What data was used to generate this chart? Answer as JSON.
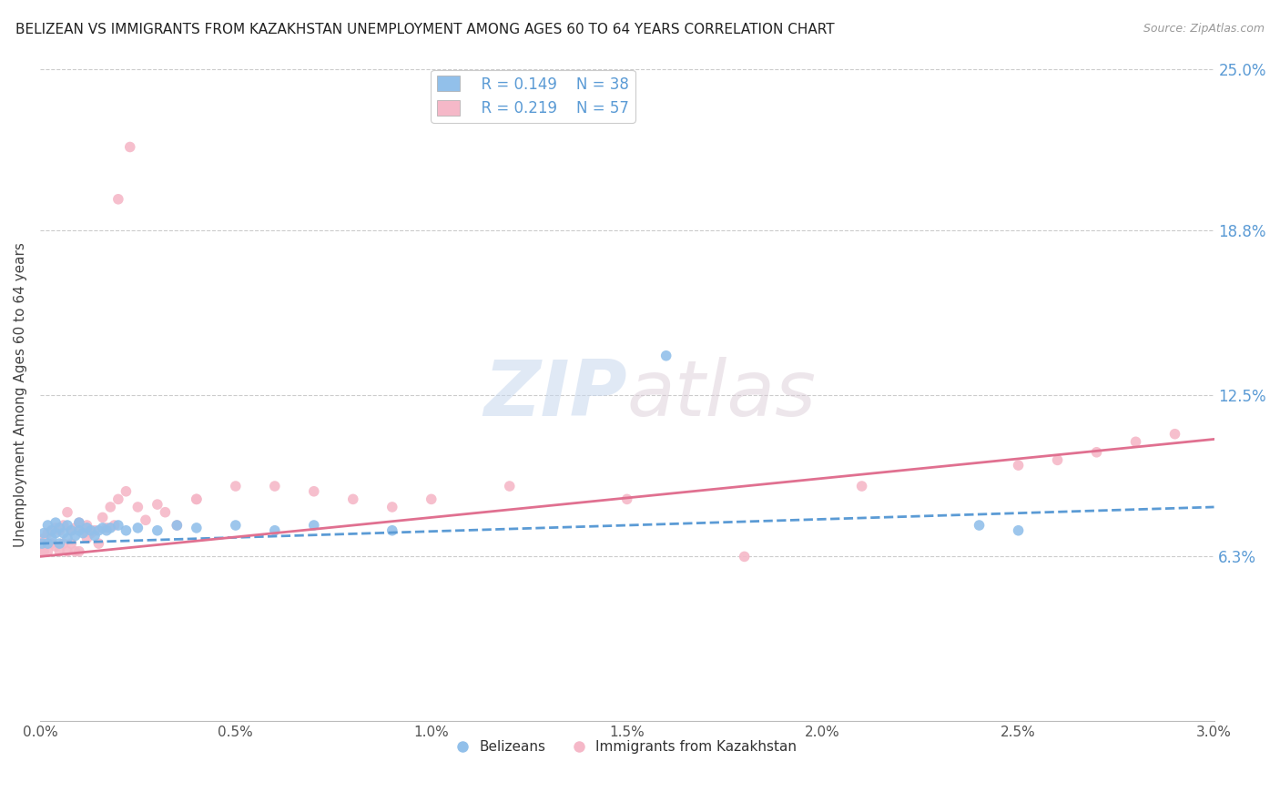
{
  "title": "BELIZEAN VS IMMIGRANTS FROM KAZAKHSTAN UNEMPLOYMENT AMONG AGES 60 TO 64 YEARS CORRELATION CHART",
  "source": "Source: ZipAtlas.com",
  "ylabel": "Unemployment Among Ages 60 to 64 years",
  "xlim": [
    0.0,
    0.03
  ],
  "ylim": [
    0.0,
    0.25
  ],
  "xtick_labels": [
    "0.0%",
    "0.5%",
    "1.0%",
    "1.5%",
    "2.0%",
    "2.5%",
    "3.0%"
  ],
  "xtick_vals": [
    0.0,
    0.005,
    0.01,
    0.015,
    0.02,
    0.025,
    0.03
  ],
  "ytick_labels": [
    "6.3%",
    "12.5%",
    "18.8%",
    "25.0%"
  ],
  "ytick_vals": [
    0.063,
    0.125,
    0.188,
    0.25
  ],
  "grid_color": "#cccccc",
  "background_color": "#ffffff",
  "blue_color": "#92c0ea",
  "pink_color": "#f5b8c8",
  "blue_line_color": "#5b9bd5",
  "pink_line_color": "#e07090",
  "legend_R_blue": "R = 0.149",
  "legend_N_blue": "N = 38",
  "legend_R_pink": "R = 0.219",
  "legend_N_pink": "N = 57",
  "watermark_zip": "ZIP",
  "watermark_atlas": "atlas",
  "blue_scatter_x": [
    5e-05,
    0.0001,
    0.0002,
    0.0002,
    0.0003,
    0.0003,
    0.0004,
    0.0004,
    0.0005,
    0.0005,
    0.0006,
    0.0007,
    0.0007,
    0.0008,
    0.0009,
    0.001,
    0.001,
    0.0011,
    0.0012,
    0.0013,
    0.0014,
    0.0015,
    0.0016,
    0.0017,
    0.0018,
    0.002,
    0.0022,
    0.0025,
    0.003,
    0.0035,
    0.004,
    0.005,
    0.006,
    0.007,
    0.009,
    0.016,
    0.024,
    0.025
  ],
  "blue_scatter_y": [
    0.068,
    0.072,
    0.068,
    0.075,
    0.07,
    0.073,
    0.072,
    0.076,
    0.068,
    0.074,
    0.072,
    0.07,
    0.075,
    0.073,
    0.071,
    0.073,
    0.076,
    0.072,
    0.074,
    0.073,
    0.071,
    0.073,
    0.074,
    0.073,
    0.074,
    0.075,
    0.073,
    0.074,
    0.073,
    0.075,
    0.074,
    0.075,
    0.073,
    0.075,
    0.073,
    0.14,
    0.075,
    0.073
  ],
  "pink_scatter_x": [
    5e-05,
    0.0001,
    0.0001,
    0.0002,
    0.0002,
    0.0003,
    0.0003,
    0.0004,
    0.0004,
    0.0005,
    0.0005,
    0.0006,
    0.0006,
    0.0007,
    0.0007,
    0.0008,
    0.0008,
    0.0009,
    0.0009,
    0.001,
    0.001,
    0.0011,
    0.0012,
    0.0012,
    0.0013,
    0.0014,
    0.0015,
    0.0016,
    0.0017,
    0.0018,
    0.0019,
    0.002,
    0.002,
    0.0022,
    0.0023,
    0.0025,
    0.0027,
    0.003,
    0.0032,
    0.0035,
    0.004,
    0.004,
    0.005,
    0.006,
    0.007,
    0.008,
    0.009,
    0.01,
    0.012,
    0.015,
    0.018,
    0.021,
    0.025,
    0.026,
    0.027,
    0.028,
    0.029
  ],
  "pink_scatter_y": [
    0.065,
    0.065,
    0.07,
    0.065,
    0.072,
    0.068,
    0.073,
    0.067,
    0.074,
    0.065,
    0.073,
    0.068,
    0.075,
    0.065,
    0.08,
    0.068,
    0.073,
    0.065,
    0.074,
    0.065,
    0.076,
    0.073,
    0.07,
    0.075,
    0.072,
    0.073,
    0.068,
    0.078,
    0.074,
    0.082,
    0.075,
    0.085,
    0.2,
    0.088,
    0.22,
    0.082,
    0.077,
    0.083,
    0.08,
    0.075,
    0.085,
    0.085,
    0.09,
    0.09,
    0.088,
    0.085,
    0.082,
    0.085,
    0.09,
    0.085,
    0.063,
    0.09,
    0.098,
    0.1,
    0.103,
    0.107,
    0.11
  ],
  "blue_trend_x": [
    0.0,
    0.03
  ],
  "blue_trend_y": [
    0.068,
    0.082
  ],
  "pink_trend_x": [
    0.0,
    0.03
  ],
  "pink_trend_y": [
    0.063,
    0.108
  ]
}
